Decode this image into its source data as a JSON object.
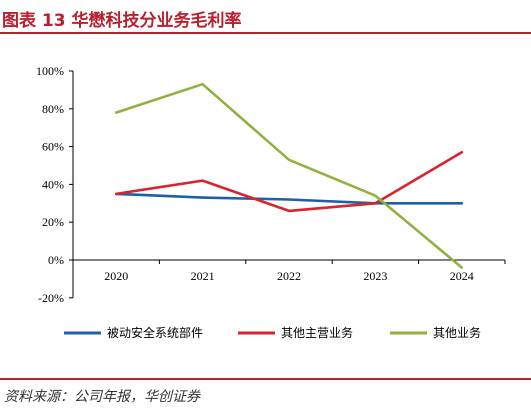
{
  "header": {
    "title": "图表 13  华懋科技分业务毛利率"
  },
  "footer": {
    "source": "资料来源：公司年报，华创证券"
  },
  "chart_data": {
    "type": "line",
    "title": "",
    "xlabel": "",
    "ylabel": "",
    "categories": [
      "2020",
      "2021",
      "2022",
      "2023",
      "2024"
    ],
    "ylim": [
      -20,
      100
    ],
    "yticks": [
      -20,
      0,
      20,
      40,
      60,
      80,
      100
    ],
    "ytick_labels": [
      "-20%",
      "0%",
      "20%",
      "40%",
      "60%",
      "80%",
      "100%"
    ],
    "grid": false,
    "legend_position": "bottom",
    "series": [
      {
        "name": "被动安全系统部件",
        "color": "#1f5fa8",
        "values": [
          35,
          33,
          32,
          30,
          30
        ]
      },
      {
        "name": "其他主营业务",
        "color": "#d9232d",
        "values": [
          35,
          42,
          26,
          30,
          57
        ]
      },
      {
        "name": "其他业务",
        "color": "#8fb23e",
        "values": [
          78,
          93,
          53,
          34,
          -4
        ]
      }
    ]
  }
}
